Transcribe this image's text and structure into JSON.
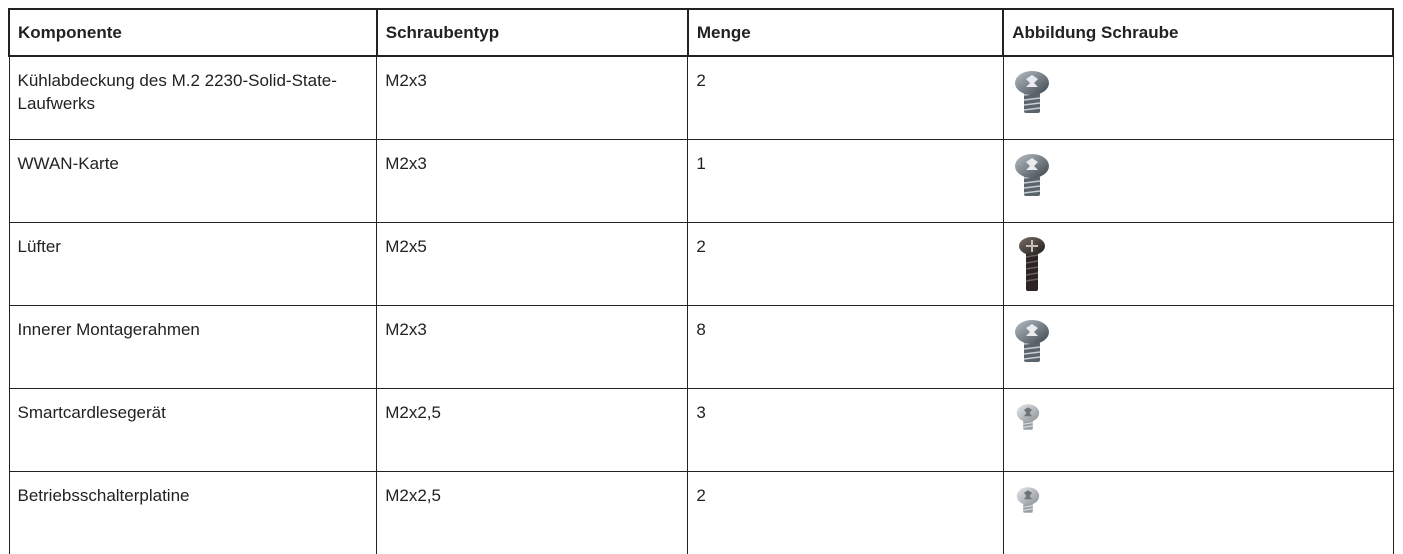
{
  "table": {
    "header": [
      "Komponente",
      "Schraubentyp",
      "Menge",
      "Abbildung Schraube"
    ],
    "rows": [
      [
        "Kühlabdeckung des M.2 2230-Solid-State-Laufwerks",
        "M2x3",
        "2"
      ],
      [
        "WWAN-Karte",
        "M2x3",
        "1"
      ],
      [
        "Lüfter",
        "M2x5",
        "2"
      ],
      [
        "Innerer Montagerahmen",
        "M2x3",
        "8"
      ],
      [
        "Smartcardlesegerät",
        "M2x2,5",
        "3"
      ],
      [
        "Betriebsschalterplatine",
        "M2x2,5",
        "2"
      ]
    ]
  }
}
